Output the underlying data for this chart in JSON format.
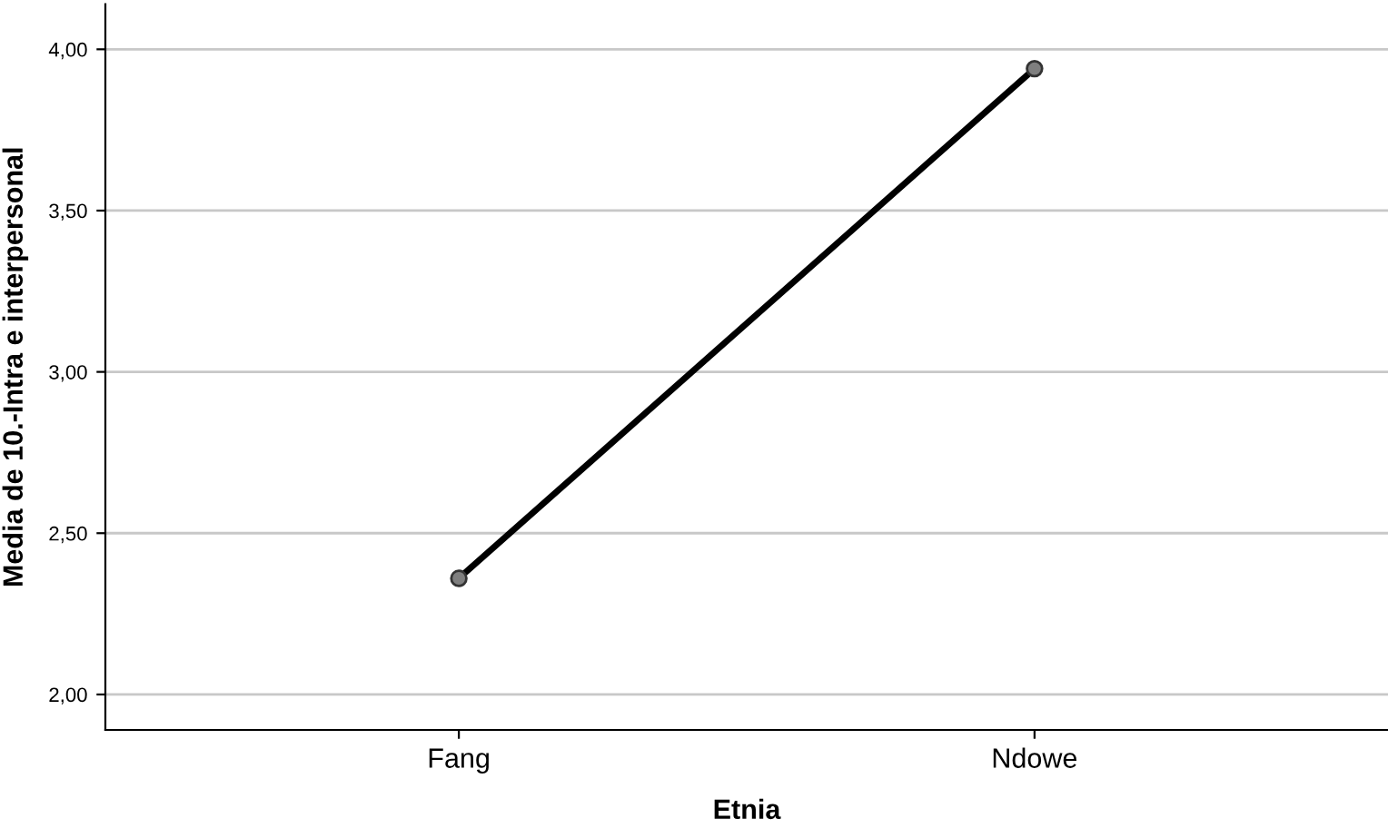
{
  "chart_data": {
    "type": "line",
    "xlabel": "Etnia",
    "ylabel": "Media de 10.-Intra e interpersonal",
    "categories": [
      "Fang",
      "Ndowe"
    ],
    "series": [
      {
        "color": "#000000",
        "values": [
          2.36,
          3.94
        ]
      }
    ],
    "ylim": [
      1.89,
      4.14
    ],
    "yticks": [
      {
        "value": 2,
        "label": "2,00"
      },
      {
        "value": 2.5,
        "label": "2,50"
      },
      {
        "value": 3,
        "label": "3,00"
      },
      {
        "value": 3.5,
        "label": "3,50"
      },
      {
        "value": 4,
        "label": "4,00"
      }
    ],
    "grid": "y",
    "marker": "circle",
    "line_style": "solid",
    "legend": false
  }
}
